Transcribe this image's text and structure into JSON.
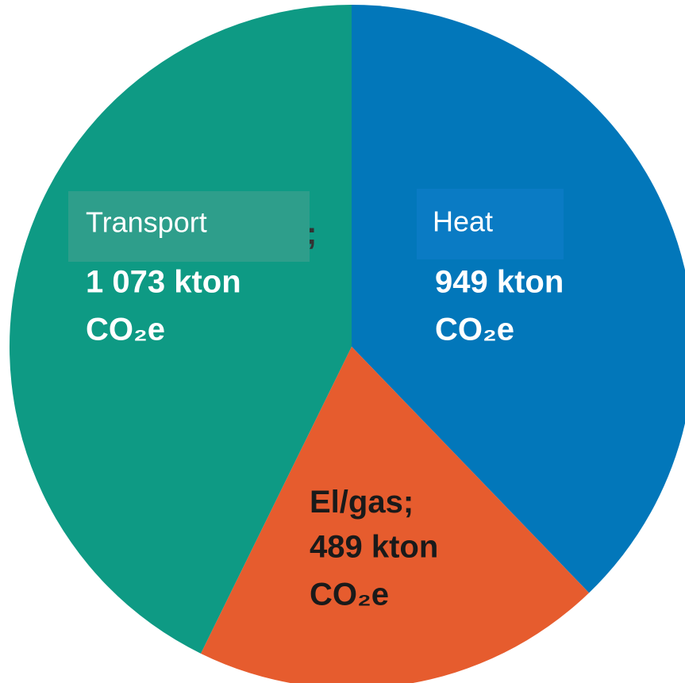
{
  "chart_data": {
    "type": "pie",
    "categories": [
      "Heat",
      "El/gas",
      "Transport"
    ],
    "values": [
      949,
      489,
      1073
    ],
    "value_labels": [
      "949 kton",
      "489 kton",
      "1 073 kton"
    ],
    "unit": "CO₂e",
    "separator": ";",
    "colors": [
      "#0277ba",
      "#e65c2e",
      "#0e9a84"
    ]
  }
}
